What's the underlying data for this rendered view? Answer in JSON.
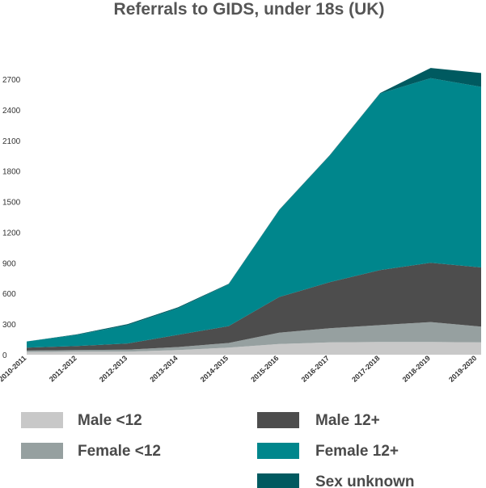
{
  "chart_data": {
    "type": "area",
    "stacked": true,
    "title": "Referrals to GIDS, under 18s (UK)",
    "xlabel": "",
    "ylabel": "",
    "categories": [
      "2010-2011",
      "2011-2012",
      "2012-2013",
      "2013-2014",
      "2014-2015",
      "2015-2016",
      "2016-2017",
      "2017-2018",
      "2018-2019",
      "2019-2020"
    ],
    "ylim": [
      0,
      2700
    ],
    "yticks": [
      0,
      300,
      600,
      900,
      1200,
      1500,
      1800,
      2100,
      2400,
      2700
    ],
    "series": [
      {
        "name": "Male <12",
        "color": "#c8c8c8",
        "values": [
          25,
          30,
          30,
          45,
          70,
          105,
          120,
          125,
          125,
          120
        ]
      },
      {
        "name": "Female <12",
        "color": "#96a0a0",
        "values": [
          15,
          15,
          20,
          30,
          45,
          110,
          140,
          165,
          195,
          155
        ]
      },
      {
        "name": "Male 12+",
        "color": "#4d4d4d",
        "values": [
          30,
          40,
          60,
          120,
          165,
          350,
          450,
          540,
          580,
          580
        ]
      },
      {
        "name": "Female 12+",
        "color": "#00868c",
        "values": [
          60,
          110,
          180,
          260,
          410,
          850,
          1240,
          1730,
          1810,
          1770
        ]
      },
      {
        "name": "Sex unknown",
        "color": "#005a60",
        "values": [
          0,
          5,
          10,
          10,
          5,
          5,
          5,
          5,
          100,
          135
        ]
      }
    ],
    "legend_position": "bottom"
  }
}
